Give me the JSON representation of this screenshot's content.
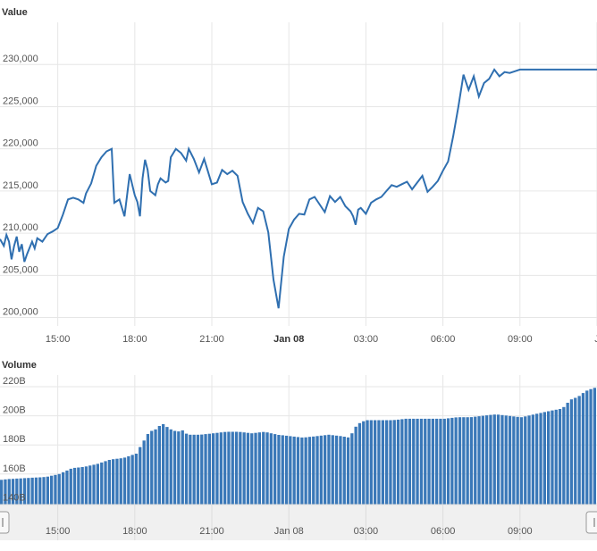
{
  "colors": {
    "line": "#2f6fb0",
    "bar": "#3a78b8",
    "grid": "#e6e6e6",
    "navigator_bg": "#f0f0f0"
  },
  "chart_data": [
    {
      "type": "line",
      "name": "value-panel",
      "ylabel": "Value",
      "xlabel": "",
      "y_ticks": [
        "200,000",
        "205,000",
        "210,000",
        "215,000",
        "220,000",
        "225,000",
        "230,000"
      ],
      "ylim": [
        199000,
        235000
      ],
      "x_ticks": [
        {
          "label": "15:00",
          "hour": 15,
          "bold": false
        },
        {
          "label": "18:00",
          "hour": 18,
          "bold": false
        },
        {
          "label": "21:00",
          "hour": 21,
          "bold": false
        },
        {
          "label": "Jan 08",
          "hour": 24,
          "bold": true
        },
        {
          "label": "03:00",
          "hour": 27,
          "bold": false
        },
        {
          "label": "06:00",
          "hour": 30,
          "bold": false
        },
        {
          "label": "09:00",
          "hour": 33,
          "bold": false
        },
        {
          "label": "J",
          "hour": 36,
          "bold": false
        }
      ],
      "xlim_hours": [
        12.75,
        36
      ],
      "series": [
        {
          "hours": [
            12.75,
            12.9,
            13.0,
            13.1,
            13.2,
            13.3,
            13.4,
            13.5,
            13.6,
            13.7,
            13.8,
            14.0,
            14.1,
            14.2,
            14.4,
            14.6,
            14.8,
            15.0,
            15.2,
            15.4,
            15.6,
            15.8,
            16.0,
            16.1,
            16.3,
            16.5,
            16.7,
            16.9,
            17.1,
            17.2,
            17.4,
            17.6,
            17.8,
            18.0,
            18.1,
            18.2,
            18.3,
            18.4,
            18.5,
            18.6,
            18.8,
            18.9,
            19.0,
            19.2,
            19.3,
            19.4,
            19.6,
            19.8,
            20.0,
            20.1,
            20.3,
            20.5,
            20.7,
            20.8,
            21.0,
            21.2,
            21.4,
            21.6,
            21.8,
            22.0,
            22.2,
            22.4,
            22.6,
            22.8,
            23.0,
            23.2,
            23.4,
            23.6,
            23.8,
            24.0,
            24.2,
            24.4,
            24.6,
            24.8,
            25.0,
            25.2,
            25.4,
            25.6,
            25.8,
            26.0,
            26.2,
            26.4,
            26.5,
            26.6,
            26.7,
            26.8,
            27.0,
            27.2,
            27.4,
            27.6,
            27.8,
            28.0,
            28.2,
            28.4,
            28.6,
            28.8,
            29.0,
            29.2,
            29.4,
            29.6,
            29.8,
            30.0,
            30.2,
            30.4,
            30.6,
            30.8,
            31.0,
            31.2,
            31.4,
            31.6,
            31.8,
            32.0,
            32.2,
            32.4,
            32.6,
            32.8,
            33.0,
            33.2,
            33.4,
            33.6,
            33.8,
            34.0,
            34.2,
            34.4,
            34.6,
            34.8,
            35.0,
            35.2,
            35.4,
            35.6,
            35.8,
            36.0
          ],
          "values": [
            209300,
            208500,
            209800,
            209000,
            206900,
            208500,
            209600,
            207800,
            208700,
            206600,
            207500,
            209000,
            208200,
            209400,
            209000,
            209900,
            210200,
            210600,
            212200,
            214000,
            214200,
            214000,
            213600,
            214700,
            215900,
            218000,
            219000,
            219700,
            220000,
            213600,
            214000,
            212000,
            217000,
            214500,
            213700,
            212000,
            216500,
            218700,
            217500,
            215000,
            214500,
            215800,
            216500,
            216000,
            216200,
            219000,
            220000,
            219500,
            218600,
            220000,
            218800,
            217200,
            218800,
            217800,
            215800,
            216000,
            217500,
            217000,
            217400,
            216800,
            213700,
            212300,
            211200,
            213000,
            212600,
            210100,
            204500,
            201100,
            207200,
            210500,
            211600,
            212300,
            212200,
            214000,
            214300,
            213400,
            212500,
            214400,
            213700,
            214300,
            213200,
            212600,
            212000,
            211000,
            212800,
            213000,
            212300,
            213600,
            214000,
            214300,
            215000,
            215700,
            215500,
            215800,
            216100,
            215200,
            216000,
            216800,
            214900,
            215500,
            216200,
            217400,
            218500,
            221500,
            225000,
            228800,
            227000,
            228600,
            226200,
            227800,
            228300,
            229400,
            228600,
            229100,
            229000,
            229200,
            229400,
            229400,
            229400,
            229400,
            229400,
            229400,
            229400,
            229400,
            229400,
            229400,
            229400,
            229400,
            229400,
            229400,
            229400,
            229400
          ]
        }
      ]
    },
    {
      "type": "bar",
      "name": "volume-panel",
      "ylabel": "Volume",
      "xlabel": "",
      "y_ticks": [
        "140B",
        "160B",
        "180B",
        "200B",
        "220B"
      ],
      "ylim": [
        139000000000,
        228000000000
      ],
      "x_ticks": [
        {
          "label": "15:00",
          "hour": 15
        },
        {
          "label": "18:00",
          "hour": 18
        },
        {
          "label": "21:00",
          "hour": 21
        },
        {
          "label": "Jan 08",
          "hour": 24
        },
        {
          "label": "03:00",
          "hour": 27
        },
        {
          "label": "06:00",
          "hour": 30
        },
        {
          "label": "09:00",
          "hour": 33
        }
      ],
      "xlim_hours": [
        12.75,
        36
      ],
      "series": [
        {
          "bar_width_hours": 0.15,
          "hours": [
            12.75,
            13.0,
            13.5,
            14.0,
            14.5,
            15.0,
            15.5,
            16.0,
            16.5,
            17.0,
            17.5,
            18.0,
            18.2,
            18.5,
            18.8,
            19.0,
            19.3,
            19.6,
            19.8,
            20.0,
            20.5,
            21.0,
            21.5,
            22.0,
            22.5,
            23.0,
            23.5,
            24.0,
            24.5,
            25.0,
            25.5,
            26.0,
            26.3,
            26.6,
            26.8,
            27.0,
            27.5,
            28.0,
            28.5,
            29.0,
            29.5,
            30.0,
            30.5,
            31.0,
            31.5,
            32.0,
            32.5,
            33.0,
            33.5,
            34.0,
            34.3,
            34.6,
            34.9,
            35.2,
            35.5,
            35.8,
            36.0
          ],
          "values": [
            156000000000,
            156500000000,
            157000000000,
            157500000000,
            158000000000,
            160000000000,
            164000000000,
            165000000000,
            167000000000,
            170000000000,
            171000000000,
            174000000000,
            180000000000,
            189000000000,
            191000000000,
            195000000000,
            191000000000,
            189000000000,
            190000000000,
            187000000000,
            187000000000,
            188000000000,
            189000000000,
            189000000000,
            188000000000,
            189000000000,
            187000000000,
            186000000000,
            185000000000,
            186000000000,
            187000000000,
            186000000000,
            185000000000,
            194000000000,
            196000000000,
            197000000000,
            197000000000,
            197000000000,
            198000000000,
            198000000000,
            198000000000,
            198000000000,
            199000000000,
            199000000000,
            200000000000,
            201000000000,
            200000000000,
            199000000000,
            201000000000,
            203000000000,
            204000000000,
            205000000000,
            211000000000,
            213000000000,
            217000000000,
            219000000000,
            220000000000
          ]
        }
      ]
    }
  ],
  "navigator": {
    "x_ticks": [
      "15:00",
      "18:00",
      "21:00",
      "Jan 08",
      "03:00",
      "06:00",
      "09:00"
    ],
    "x_ticks_hours": [
      15,
      18,
      21,
      24,
      27,
      30,
      33
    ]
  }
}
